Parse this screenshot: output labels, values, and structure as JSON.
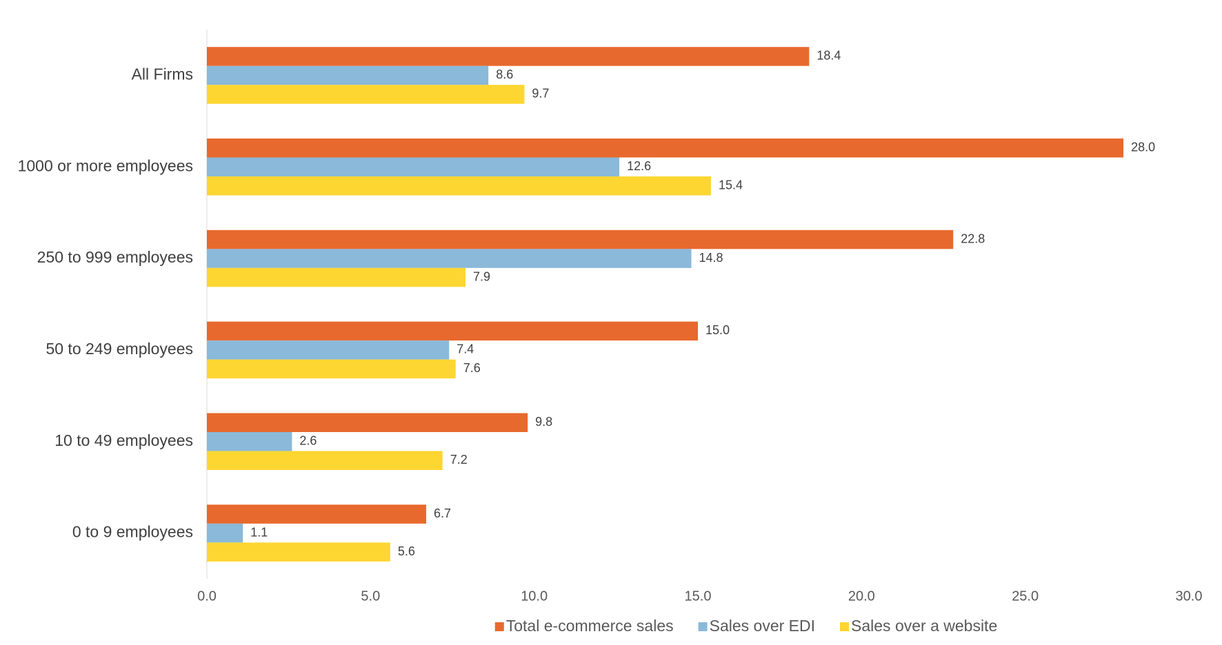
{
  "chart_data": {
    "type": "hbar",
    "categories": [
      "All Firms",
      "1000 or more employees",
      "250 to 999 employees",
      "50 to 249 employees",
      "10 to 49 employees",
      "0 to 9 employees"
    ],
    "series": [
      {
        "name": "Total e-commerce sales",
        "color": "#e8692d",
        "values": [
          18.4,
          28.0,
          22.8,
          15.0,
          9.8,
          6.7
        ],
        "value_labels": [
          "18.4",
          "28.0",
          "22.8",
          "15.0",
          "9.8",
          "6.7"
        ]
      },
      {
        "name": "Sales over EDI",
        "color": "#8ab9d9",
        "values": [
          8.6,
          12.6,
          14.8,
          7.4,
          2.6,
          1.1
        ],
        "value_labels": [
          "8.6",
          "12.6",
          "14.8",
          "7.4",
          "2.6",
          "1.1"
        ]
      },
      {
        "name": "Sales over a website",
        "color": "#fdd632",
        "values": [
          9.7,
          15.4,
          7.9,
          7.6,
          7.2,
          5.6
        ],
        "value_labels": [
          "9.7",
          "15.4",
          "7.9",
          "7.6",
          "7.2",
          "5.6"
        ]
      }
    ],
    "xlim": [
      0,
      30
    ],
    "xticks": [
      {
        "value": 0,
        "label": "0.0"
      },
      {
        "value": 5,
        "label": "5.0"
      },
      {
        "value": 10,
        "label": "10.0"
      },
      {
        "value": 15,
        "label": "15.0"
      },
      {
        "value": 20,
        "label": "20.0"
      },
      {
        "value": 25,
        "label": "25.0"
      },
      {
        "value": 30,
        "label": "30.0"
      }
    ],
    "grid": false,
    "legend": "bottom"
  }
}
